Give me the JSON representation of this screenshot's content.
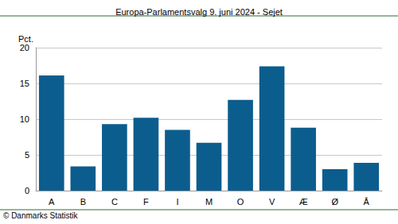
{
  "chart_data": {
    "type": "bar",
    "title": "Europa-Parlamentsvalg 9. juni 2024 - Sejet",
    "y_label": "Pct.",
    "source": "© Danmarks Statistik",
    "categories": [
      "A",
      "B",
      "C",
      "F",
      "I",
      "M",
      "O",
      "V",
      "Æ",
      "Ø",
      "Å"
    ],
    "values": [
      16.1,
      3.4,
      9.3,
      10.2,
      8.5,
      6.7,
      12.7,
      17.4,
      8.8,
      3.0,
      3.9
    ],
    "color": "#0b5d8e",
    "ylim": [
      0,
      20
    ],
    "yticks": [
      0,
      5,
      10,
      15,
      20
    ],
    "grid": true
  }
}
